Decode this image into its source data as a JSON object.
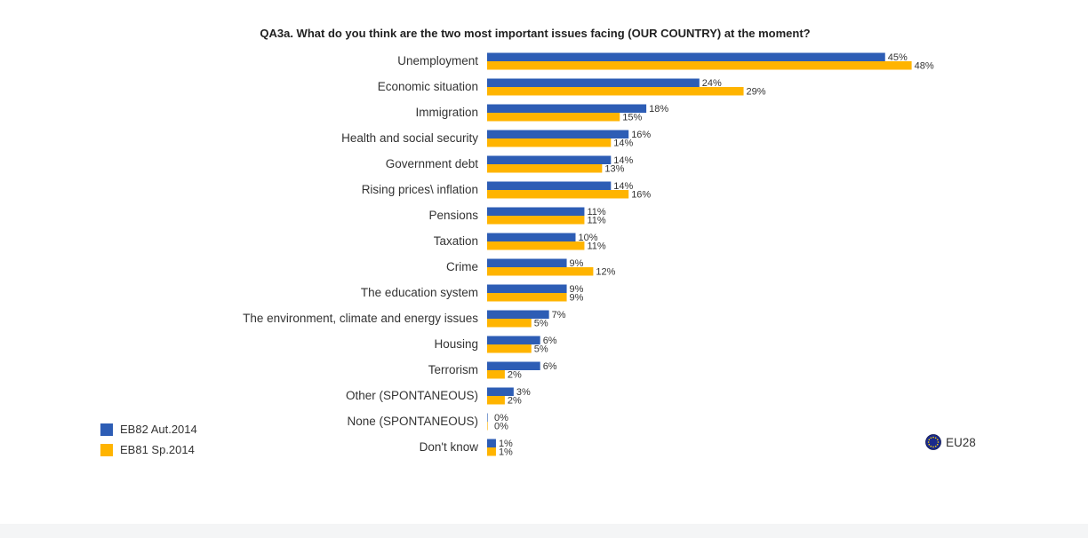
{
  "chart_data": {
    "type": "bar",
    "orientation": "horizontal",
    "title": "QA3a. What do you think are the two most important issues facing (OUR COUNTRY) at the moment?",
    "categories": [
      "Unemployment",
      "Economic situation",
      "Immigration",
      "Health and social security",
      "Government debt",
      "Rising prices\\ inflation",
      "Pensions",
      "Taxation",
      "Crime",
      "The education system",
      "The environment, climate and energy issues",
      "Housing",
      "Terrorism",
      "Other (SPONTANEOUS)",
      "None (SPONTANEOUS)",
      "Don't know"
    ],
    "series": [
      {
        "name": "EB82 Aut.2014",
        "color": "#2d5db5",
        "values": [
          45,
          24,
          18,
          16,
          14,
          14,
          11,
          10,
          9,
          9,
          7,
          6,
          6,
          3,
          0,
          1
        ]
      },
      {
        "name": "EB81 Sp.2014",
        "color": "#ffb400",
        "values": [
          48,
          29,
          15,
          14,
          13,
          16,
          11,
          11,
          12,
          9,
          5,
          5,
          2,
          2,
          0,
          1
        ]
      }
    ],
    "value_suffix": "%",
    "legend": "bottom-left",
    "grid": false
  },
  "region": {
    "label": "EU28",
    "icon": "eu-flag-icon"
  }
}
